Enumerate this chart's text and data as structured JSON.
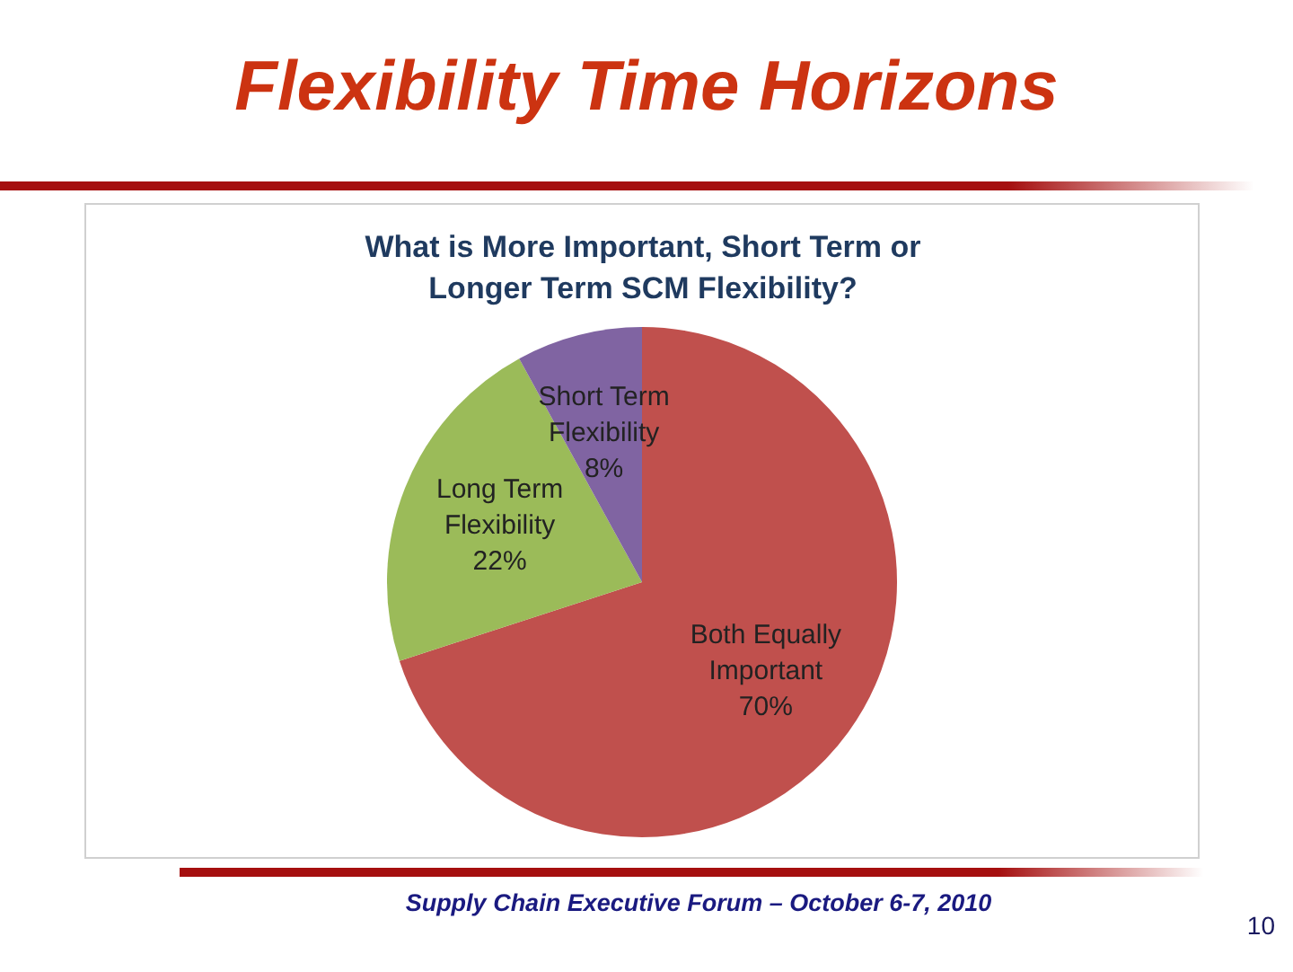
{
  "chart_data": {
    "type": "pie",
    "title": "Flexibility Time Horizons",
    "subtitle": "What is More Important, Short Term or Longer Term SCM Flexibility?",
    "categories": [
      "Both Equally Important",
      "Long Term Flexibility",
      "Short Term Flexibility"
    ],
    "values": [
      70,
      22,
      8
    ],
    "colors": [
      "#c0504d",
      "#9bbb59",
      "#8064a2"
    ],
    "value_labels": [
      "70%",
      "22%",
      "8%"
    ],
    "annotations": [
      "Supply Chain Executive Forum – October 6-7, 2010",
      "10"
    ]
  }
}
